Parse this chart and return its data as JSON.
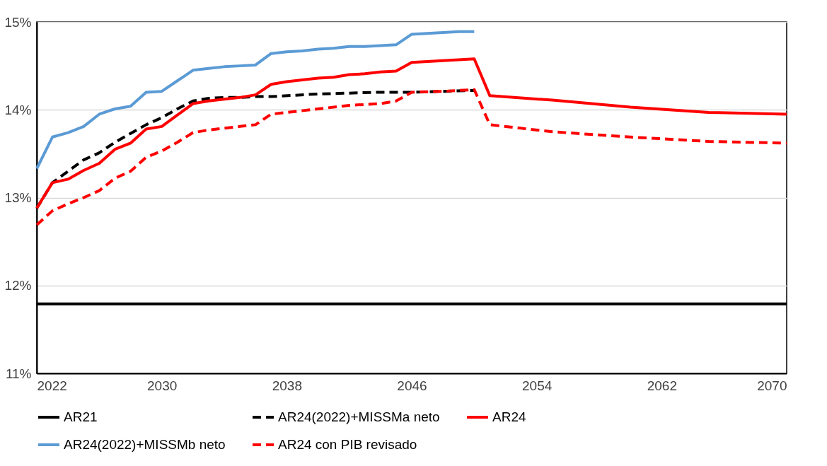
{
  "chart_data": {
    "type": "line",
    "xlim": [
      2022,
      2070
    ],
    "xticks": [
      2022,
      2030,
      2038,
      2046,
      2054,
      2062,
      2070
    ],
    "ylim": [
      11,
      15
    ],
    "yticks": [
      {
        "value": 11,
        "label": "11%"
      },
      {
        "value": 12,
        "label": "12%"
      },
      {
        "value": 13,
        "label": "13%"
      },
      {
        "value": 14,
        "label": "14%"
      },
      {
        "value": 15,
        "label": "15%"
      }
    ],
    "grid": "y",
    "legend": "bottom",
    "series": [
      {
        "name": "AR21",
        "color": "#000000",
        "line_style": "solid",
        "x": [
          2022,
          2070
        ],
        "values": [
          11.79,
          11.79
        ]
      },
      {
        "name": "AR24(2022)+MISSMa neto",
        "color": "#000000",
        "line_style": "dashed",
        "x": [
          2022,
          2023,
          2024,
          2025,
          2026,
          2027,
          2028,
          2029,
          2030,
          2031,
          2032,
          2033,
          2034,
          2035,
          2036,
          2037,
          2040,
          2044,
          2046,
          2050
        ],
        "values": [
          12.88,
          13.17,
          13.3,
          13.43,
          13.51,
          13.63,
          13.73,
          13.83,
          13.91,
          14.01,
          14.1,
          14.13,
          14.14,
          14.14,
          14.15,
          14.15,
          14.18,
          14.2,
          14.2,
          14.22
        ]
      },
      {
        "name": "AR24",
        "color": "#ff0000",
        "line_style": "solid",
        "x": [
          2022,
          2023,
          2024,
          2025,
          2026,
          2027,
          2028,
          2029,
          2030,
          2031,
          2032,
          2033,
          2034,
          2035,
          2036,
          2037,
          2038,
          2039,
          2040,
          2041,
          2042,
          2043,
          2044,
          2045,
          2046,
          2047,
          2048,
          2049,
          2050,
          2051,
          2055,
          2060,
          2065,
          2070
        ],
        "values": [
          12.88,
          13.17,
          13.21,
          13.31,
          13.39,
          13.55,
          13.62,
          13.78,
          13.81,
          13.94,
          14.07,
          14.1,
          14.12,
          14.14,
          14.17,
          14.29,
          14.32,
          14.34,
          14.36,
          14.37,
          14.4,
          14.41,
          14.43,
          14.44,
          14.54,
          14.55,
          14.56,
          14.57,
          14.58,
          14.16,
          14.11,
          14.03,
          13.97,
          13.95
        ]
      },
      {
        "name": "AR24(2022)+MISSMb neto",
        "color": "#5b9bd5",
        "line_style": "solid",
        "x": [
          2022,
          2023,
          2024,
          2025,
          2026,
          2027,
          2028,
          2029,
          2030,
          2031,
          2032,
          2033,
          2034,
          2035,
          2036,
          2037,
          2038,
          2039,
          2040,
          2041,
          2042,
          2043,
          2044,
          2045,
          2046,
          2047,
          2048,
          2049,
          2050
        ],
        "values": [
          13.33,
          13.69,
          13.74,
          13.81,
          13.95,
          14.01,
          14.04,
          14.2,
          14.21,
          14.33,
          14.45,
          14.47,
          14.49,
          14.5,
          14.51,
          14.64,
          14.66,
          14.67,
          14.69,
          14.7,
          14.72,
          14.72,
          14.73,
          14.74,
          14.86,
          14.87,
          14.88,
          14.89,
          14.89
        ]
      },
      {
        "name": "AR24 con PIB revisado",
        "color": "#ff0000",
        "line_style": "dashed",
        "x": [
          2022,
          2023,
          2024,
          2025,
          2026,
          2027,
          2028,
          2029,
          2030,
          2031,
          2032,
          2033,
          2034,
          2035,
          2036,
          2037,
          2038,
          2040,
          2042,
          2044,
          2045,
          2046,
          2048,
          2050,
          2051,
          2055,
          2060,
          2065,
          2070
        ],
        "values": [
          12.69,
          12.85,
          12.93,
          13.0,
          13.08,
          13.22,
          13.3,
          13.46,
          13.53,
          13.63,
          13.74,
          13.77,
          13.79,
          13.81,
          13.83,
          13.95,
          13.97,
          14.01,
          14.05,
          14.07,
          14.1,
          14.2,
          14.21,
          14.23,
          13.83,
          13.75,
          13.69,
          13.64,
          13.62
        ]
      }
    ]
  }
}
